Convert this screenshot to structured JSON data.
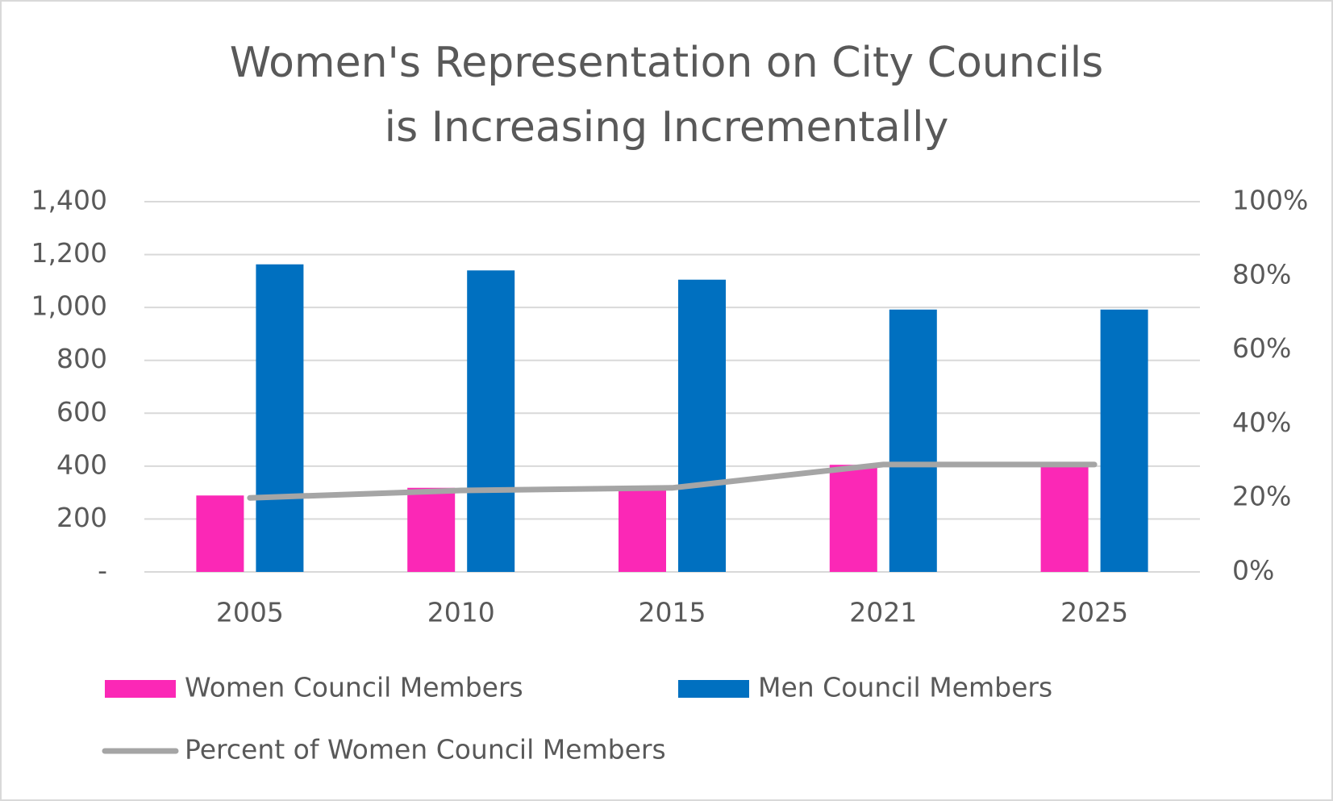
{
  "chart_data": {
    "type": "bar",
    "title": "Women's Representation on City Councils is Increasing Incrementally",
    "categories": [
      "2005",
      "2010",
      "2015",
      "2021",
      "2025"
    ],
    "series": [
      {
        "name": "Women Council Members",
        "color": "#fb28b6",
        "values": [
          289,
          318,
          308,
          405,
          400
        ]
      },
      {
        "name": "Men Council Members",
        "color": "#0070c0",
        "values": [
          1163,
          1140,
          1105,
          992,
          992
        ]
      },
      {
        "name": "Percent of Women Council Members",
        "type": "line",
        "axis": "y2",
        "color": "#a5a5a5",
        "values": [
          20,
          22,
          22.7,
          29,
          29
        ]
      }
    ],
    "ylim": [
      0,
      1400
    ],
    "yticks": [
      {
        "value": 0,
        "label": "-"
      },
      200,
      400,
      600,
      800,
      {
        "value": 1000,
        "label": "1,000"
      },
      {
        "value": 1200,
        "label": "1,200"
      },
      {
        "value": 1400,
        "label": "1,400"
      }
    ],
    "y2lim": [
      0,
      100
    ],
    "y2ticks": [
      {
        "value": 0,
        "label": "0%"
      },
      {
        "value": 20,
        "label": "20%"
      },
      {
        "value": 40,
        "label": "40%"
      },
      {
        "value": 60,
        "label": "60%"
      },
      {
        "value": 80,
        "label": "80%"
      },
      {
        "value": 100,
        "label": "100%"
      }
    ],
    "grid": true,
    "legend": "bottom"
  }
}
